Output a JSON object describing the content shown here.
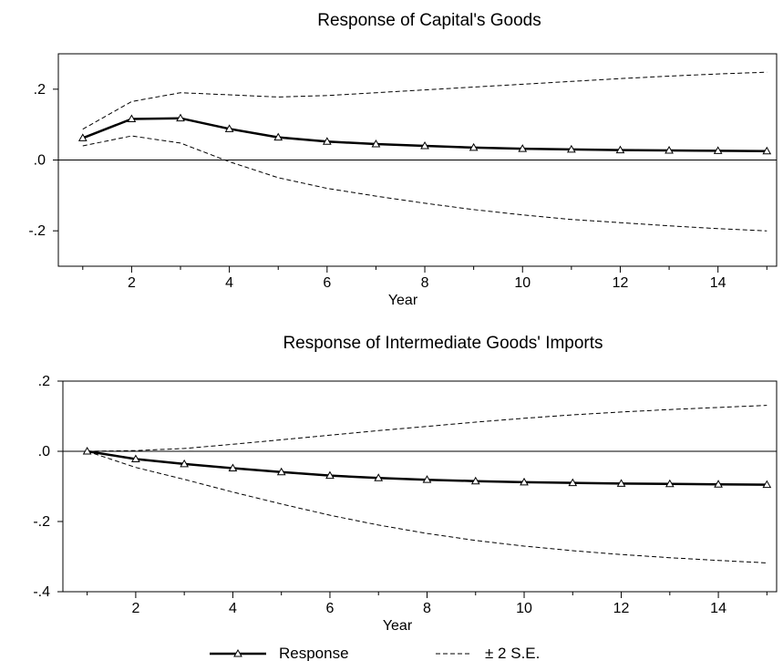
{
  "chart_data": [
    {
      "type": "line",
      "title": "Response of Capital's Goods",
      "xlabel": "Year",
      "ylabel": "",
      "xlim": [
        0.5,
        15.2
      ],
      "ylim": [
        -0.3,
        0.3
      ],
      "x_ticks": [
        2,
        4,
        6,
        8,
        10,
        12,
        14
      ],
      "y_ticks": [
        {
          "value": 0.2,
          "label": ".2"
        },
        {
          "value": 0.0,
          "label": ".0"
        },
        {
          "value": -0.2,
          "label": "-.2"
        }
      ],
      "zero_line": true,
      "x": [
        1,
        2,
        3,
        4,
        5,
        6,
        7,
        8,
        9,
        10,
        11,
        12,
        13,
        14,
        15
      ],
      "series": [
        {
          "name": "Response",
          "style": "solid-triangle",
          "values": [
            0.062,
            0.116,
            0.118,
            0.088,
            0.064,
            0.052,
            0.045,
            0.04,
            0.035,
            0.032,
            0.03,
            0.028,
            0.027,
            0.026,
            0.025
          ]
        },
        {
          "name": "± 2 S.E.",
          "style": "dashed",
          "values": [
            0.087,
            0.165,
            0.19,
            0.184,
            0.178,
            0.182,
            0.19,
            0.198,
            0.206,
            0.214,
            0.222,
            0.23,
            0.237,
            0.243,
            0.248
          ]
        },
        {
          "name": "± 2 S.E.",
          "style": "dashed",
          "values": [
            0.04,
            0.068,
            0.048,
            -0.005,
            -0.05,
            -0.08,
            -0.102,
            -0.122,
            -0.14,
            -0.155,
            -0.168,
            -0.177,
            -0.186,
            -0.194,
            -0.2
          ]
        }
      ]
    },
    {
      "type": "line",
      "title": "Response of  Intermediate Goods' Imports",
      "xlabel": "Year",
      "ylabel": "",
      "xlim": [
        0.5,
        15.2
      ],
      "ylim": [
        -0.4,
        0.2
      ],
      "x_ticks": [
        2,
        4,
        6,
        8,
        10,
        12,
        14
      ],
      "y_ticks": [
        {
          "value": 0.2,
          "label": ".2"
        },
        {
          "value": 0.0,
          "label": ".0"
        },
        {
          "value": -0.2,
          "label": "-.2"
        },
        {
          "value": -0.4,
          "label": "-.4"
        }
      ],
      "zero_line": true,
      "x": [
        1,
        2,
        3,
        4,
        5,
        6,
        7,
        8,
        9,
        10,
        11,
        12,
        13,
        14,
        15
      ],
      "series": [
        {
          "name": "Response",
          "style": "solid-triangle",
          "values": [
            0.0,
            -0.022,
            -0.036,
            -0.048,
            -0.059,
            -0.069,
            -0.076,
            -0.081,
            -0.085,
            -0.088,
            -0.09,
            -0.092,
            -0.093,
            -0.094,
            -0.095
          ]
        },
        {
          "name": "± 2 S.E.",
          "style": "dashed",
          "values": [
            0.0,
            0.002,
            0.008,
            0.02,
            0.033,
            0.046,
            0.059,
            0.071,
            0.083,
            0.094,
            0.104,
            0.112,
            0.119,
            0.125,
            0.131
          ]
        },
        {
          "name": "± 2 S.E.",
          "style": "dashed",
          "values": [
            0.0,
            -0.046,
            -0.08,
            -0.116,
            -0.15,
            -0.182,
            -0.21,
            -0.234,
            -0.254,
            -0.27,
            -0.283,
            -0.294,
            -0.303,
            -0.311,
            -0.318
          ]
        }
      ]
    }
  ],
  "legend": {
    "placement": "bottom-center",
    "response_label": "Response",
    "se_label": "± 2 S.E."
  }
}
